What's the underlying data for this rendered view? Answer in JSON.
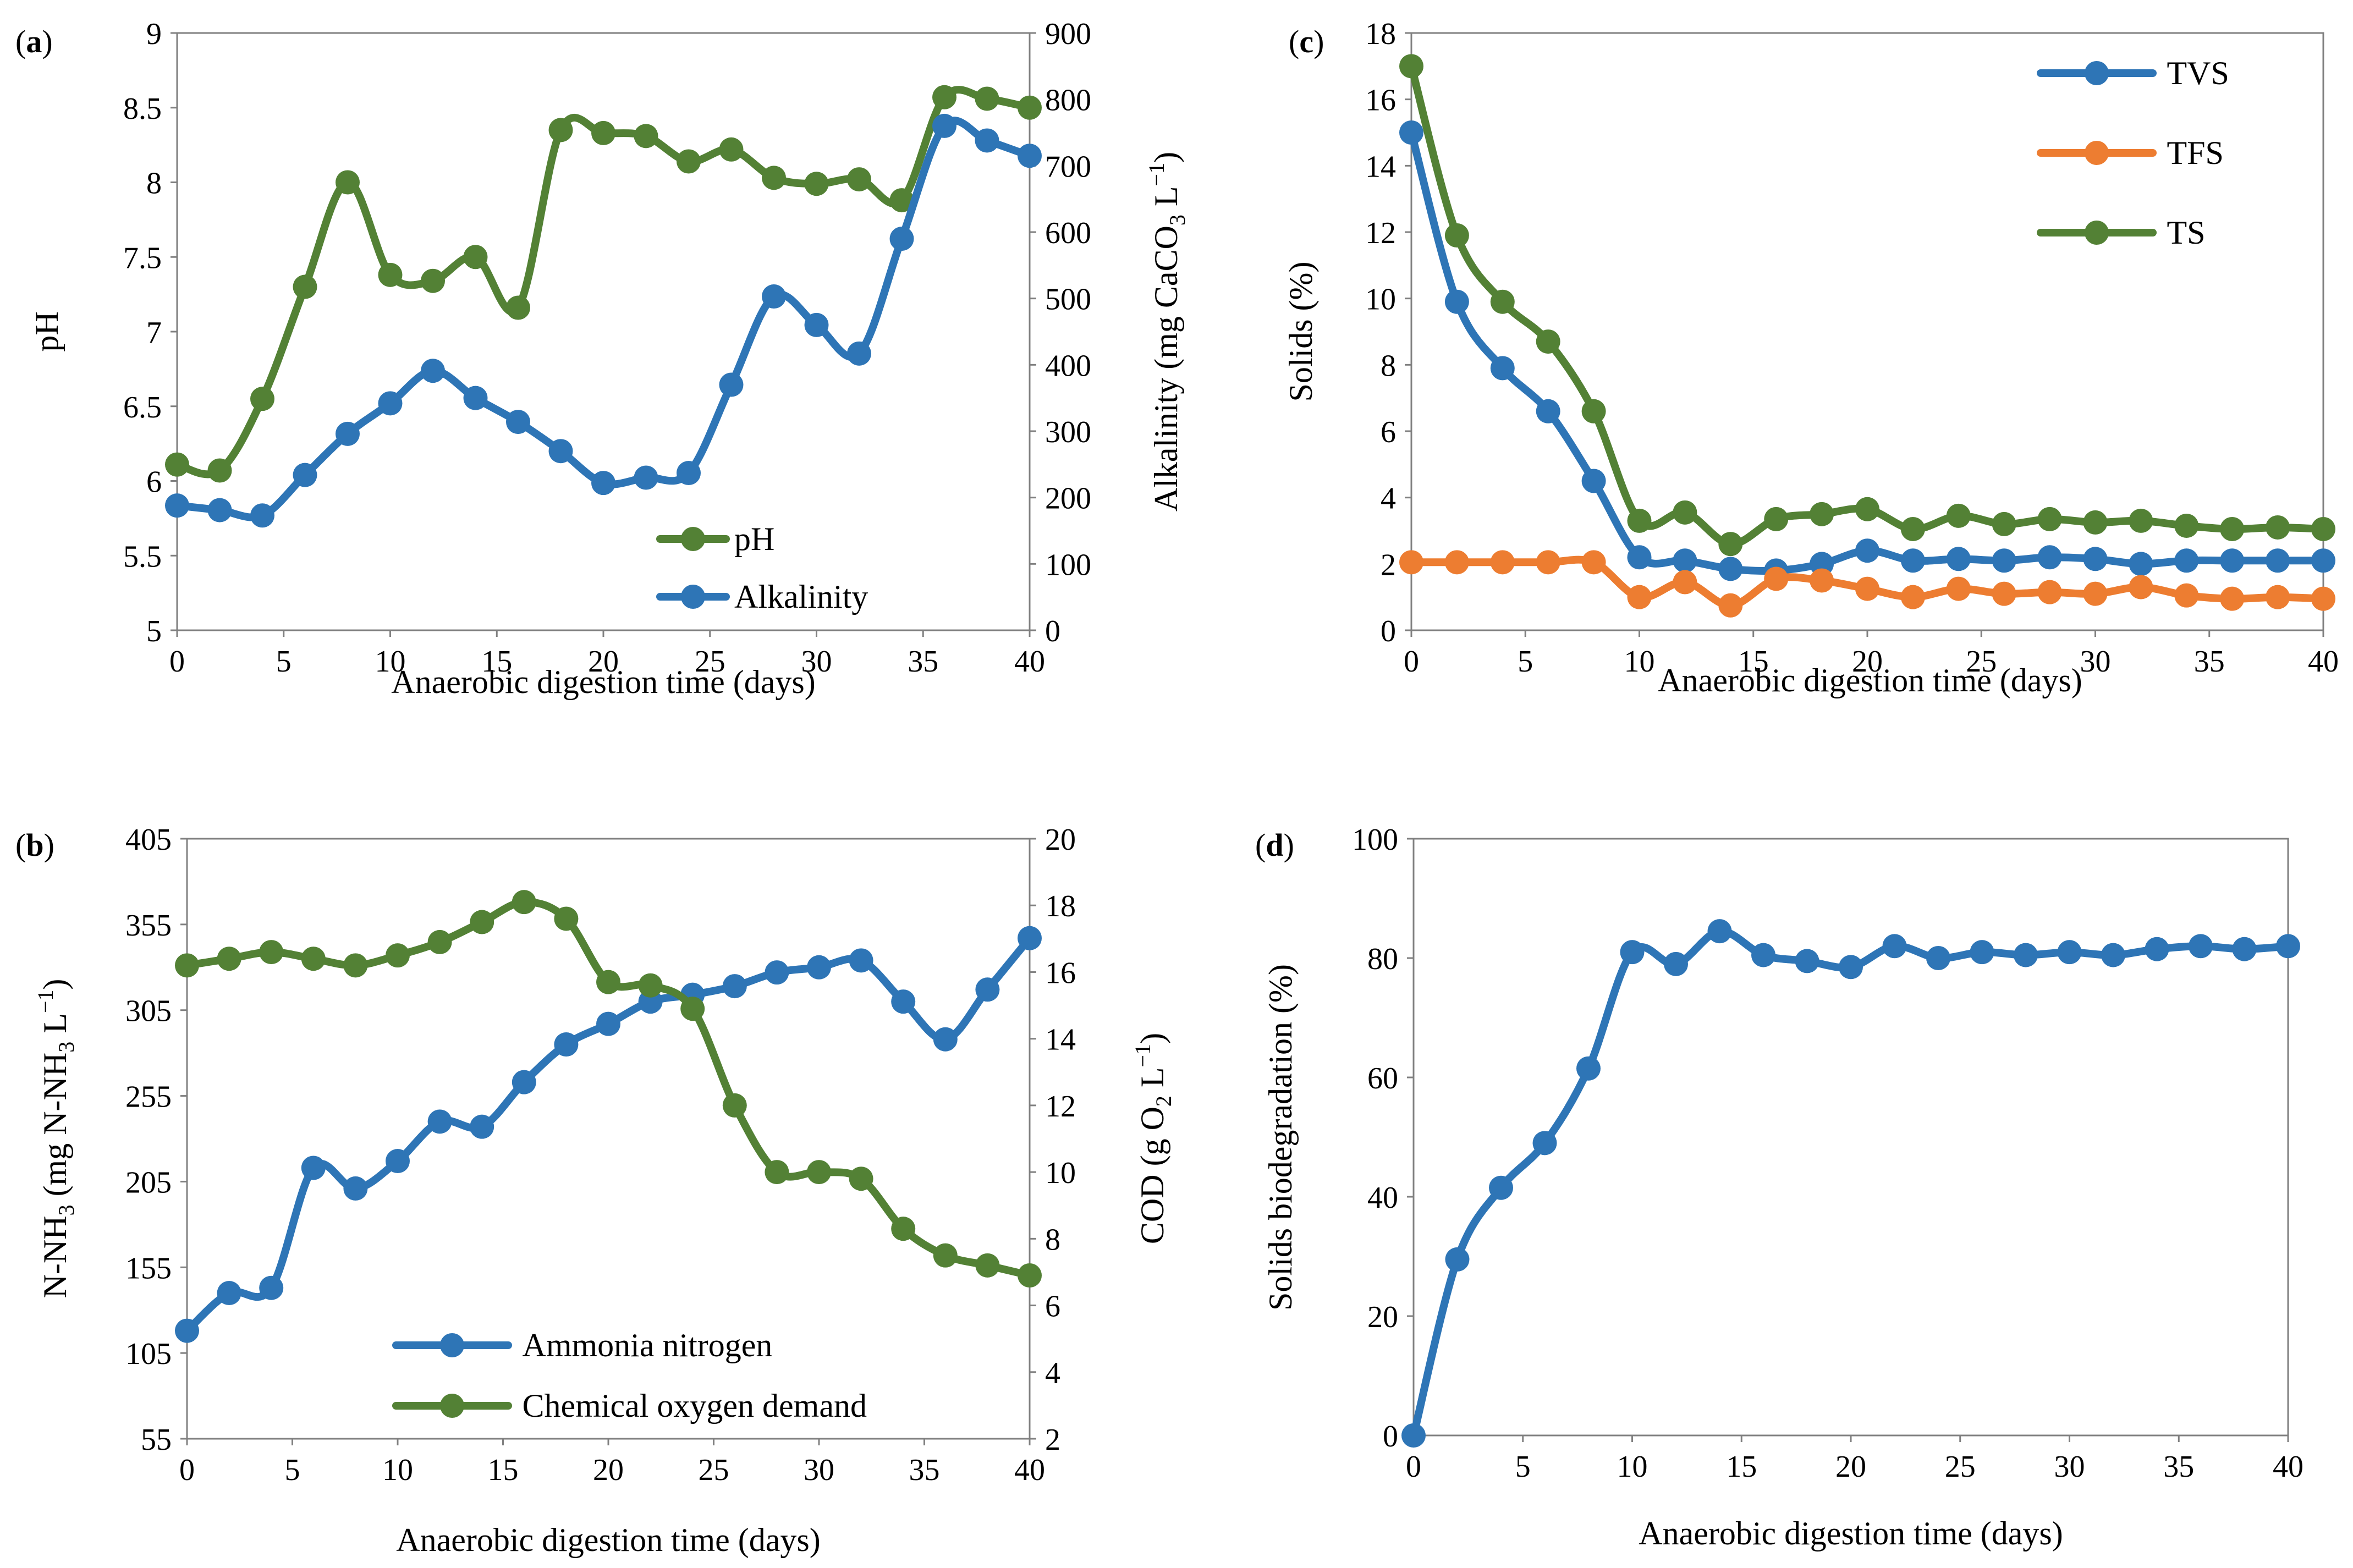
{
  "colors": {
    "blue": "#2E75B6",
    "green": "#538135",
    "orange": "#ED7D31",
    "axis": "#808080"
  },
  "chart_data": [
    {
      "id": "a",
      "panel_label_prefix": "(",
      "panel_label_letter": "a",
      "panel_label_suffix": ")",
      "type": "line",
      "xlabel": "Anaerobic digestion time (days)",
      "ylabel": "pH",
      "ylabel2_parts": [
        "Alkalinity (mg CaCO",
        "3",
        " L",
        "−1",
        ")"
      ],
      "xlim": [
        0,
        40
      ],
      "ylim": [
        5,
        9
      ],
      "ylim2": [
        0,
        900
      ],
      "xticks": [
        "0",
        "5",
        "10",
        "15",
        "20",
        "25",
        "30",
        "35",
        "40"
      ],
      "yticks": [
        "5",
        "5.5",
        "6",
        "6.5",
        "7",
        "7.5",
        "8",
        "8.5",
        "9"
      ],
      "y2ticks": [
        "0",
        "100",
        "200",
        "300",
        "400",
        "500",
        "600",
        "700",
        "800",
        "900"
      ],
      "x": [
        0,
        2,
        4,
        6,
        8,
        10,
        12,
        14,
        16,
        18,
        20,
        22,
        24,
        26,
        28,
        30,
        32,
        34,
        36,
        38,
        40
      ],
      "series": [
        {
          "name": "pH",
          "axis": "left",
          "color": "green",
          "values": [
            6.11,
            6.07,
            6.55,
            7.3,
            8.0,
            7.38,
            7.34,
            7.5,
            7.16,
            8.35,
            8.33,
            8.31,
            8.14,
            8.22,
            8.03,
            7.99,
            8.02,
            7.88,
            8.57,
            8.56,
            8.5
          ]
        },
        {
          "name": "Alkalinity",
          "axis": "right",
          "color": "blue",
          "values": [
            188,
            181,
            173,
            234,
            296,
            342,
            391,
            350,
            314,
            270,
            222,
            230,
            237,
            370,
            503,
            460,
            417,
            590,
            760,
            738,
            715
          ]
        }
      ],
      "legend": {
        "position": "bottom-right",
        "items": [
          "pH",
          "Alkalinity"
        ]
      }
    },
    {
      "id": "b",
      "panel_label_prefix": "(",
      "panel_label_letter": "b",
      "panel_label_suffix": ")",
      "type": "line",
      "xlabel": "Anaerobic digestion time (days)",
      "ylabel_parts": [
        "N-NH",
        "3",
        " (mg N-NH",
        "3",
        " L",
        "−1",
        ")"
      ],
      "ylabel2_parts": [
        "COD (g O",
        "2",
        " L",
        "−1",
        ")"
      ],
      "xlim": [
        0,
        40
      ],
      "ylim": [
        55,
        405
      ],
      "ylim2": [
        2,
        20
      ],
      "xticks": [
        "0",
        "5",
        "10",
        "15",
        "20",
        "25",
        "30",
        "35",
        "40"
      ],
      "yticks": [
        "55",
        "105",
        "155",
        "205",
        "255",
        "305",
        "355",
        "405"
      ],
      "y2ticks": [
        "2",
        "4",
        "6",
        "8",
        "10",
        "12",
        "14",
        "16",
        "18",
        "20"
      ],
      "x": [
        0,
        2,
        4,
        6,
        8,
        10,
        12,
        14,
        16,
        18,
        20,
        22,
        24,
        26,
        28,
        30,
        32,
        34,
        36,
        38,
        40
      ],
      "series": [
        {
          "name": "Ammonia nitrogen",
          "axis": "left",
          "color": "blue",
          "values": [
            118,
            140,
            143,
            213,
            201,
            217,
            240,
            237,
            263,
            285,
            297,
            310,
            314,
            319,
            327,
            330,
            334,
            310,
            288,
            317,
            347
          ]
        },
        {
          "name": "Chemical oxygen demand",
          "axis": "right",
          "color": "green",
          "values": [
            16.2,
            16.4,
            16.6,
            16.4,
            16.2,
            16.5,
            16.9,
            17.5,
            18.1,
            17.6,
            15.7,
            15.6,
            14.9,
            12.0,
            10.0,
            10.0,
            9.8,
            8.3,
            7.5,
            7.2,
            6.9
          ]
        }
      ],
      "legend": {
        "position": "bottom-right",
        "items": [
          "Ammonia nitrogen",
          "Chemical oxygen demand"
        ]
      }
    },
    {
      "id": "c",
      "panel_label_prefix": "(",
      "panel_label_letter": "c",
      "panel_label_suffix": ")",
      "type": "line",
      "xlabel": "Anaerobic digestion time (days)",
      "ylabel": "Solids (%)",
      "xlim": [
        0,
        40
      ],
      "ylim": [
        0,
        18
      ],
      "xticks": [
        "0",
        "5",
        "10",
        "15",
        "20",
        "25",
        "30",
        "35",
        "40"
      ],
      "yticks": [
        "0",
        "2",
        "4",
        "6",
        "8",
        "10",
        "12",
        "14",
        "16",
        "18"
      ],
      "x": [
        0,
        2,
        4,
        6,
        8,
        10,
        12,
        14,
        16,
        18,
        20,
        22,
        24,
        26,
        28,
        30,
        32,
        34,
        36,
        38,
        40
      ],
      "series": [
        {
          "name": "TVS",
          "color": "blue",
          "values": [
            15.0,
            9.9,
            7.9,
            6.6,
            4.5,
            2.2,
            2.1,
            1.85,
            1.8,
            2.0,
            2.4,
            2.1,
            2.15,
            2.1,
            2.2,
            2.15,
            2.0,
            2.1,
            2.1,
            2.1,
            2.1
          ]
        },
        {
          "name": "TFS",
          "color": "orange",
          "values": [
            2.05,
            2.05,
            2.05,
            2.05,
            2.05,
            1.0,
            1.45,
            0.75,
            1.55,
            1.5,
            1.25,
            1.0,
            1.25,
            1.1,
            1.15,
            1.1,
            1.3,
            1.05,
            0.95,
            1.0,
            0.95
          ]
        },
        {
          "name": "TS",
          "color": "green",
          "values": [
            17.0,
            11.9,
            9.9,
            8.7,
            6.6,
            3.3,
            3.55,
            2.6,
            3.35,
            3.5,
            3.65,
            3.05,
            3.45,
            3.2,
            3.35,
            3.25,
            3.3,
            3.15,
            3.05,
            3.1,
            3.05
          ]
        }
      ],
      "legend": {
        "position": "top-right",
        "items": [
          "TVS",
          "TFS",
          "TS"
        ]
      }
    },
    {
      "id": "d",
      "panel_label_prefix": "(",
      "panel_label_letter": "d",
      "panel_label_suffix": ")",
      "type": "line",
      "xlabel": "Anaerobic digestion time (days)",
      "ylabel": "Solids biodegradation (%)",
      "xlim": [
        0,
        40
      ],
      "ylim": [
        0,
        100
      ],
      "xticks": [
        "0",
        "5",
        "10",
        "15",
        "20",
        "25",
        "30",
        "35",
        "40"
      ],
      "yticks": [
        "0",
        "20",
        "40",
        "60",
        "80",
        "100"
      ],
      "x": [
        0,
        2,
        4,
        6,
        8,
        10,
        12,
        14,
        16,
        18,
        20,
        22,
        24,
        26,
        28,
        30,
        32,
        34,
        36,
        38,
        40
      ],
      "series": [
        {
          "name": "Solids biodegradation",
          "color": "blue",
          "values": [
            0,
            29.5,
            41.5,
            49,
            61.5,
            81,
            79,
            84.5,
            80.5,
            79.5,
            78.5,
            82,
            80,
            81,
            80.5,
            81,
            80.5,
            81.5,
            82,
            81.5,
            82
          ]
        }
      ]
    }
  ]
}
